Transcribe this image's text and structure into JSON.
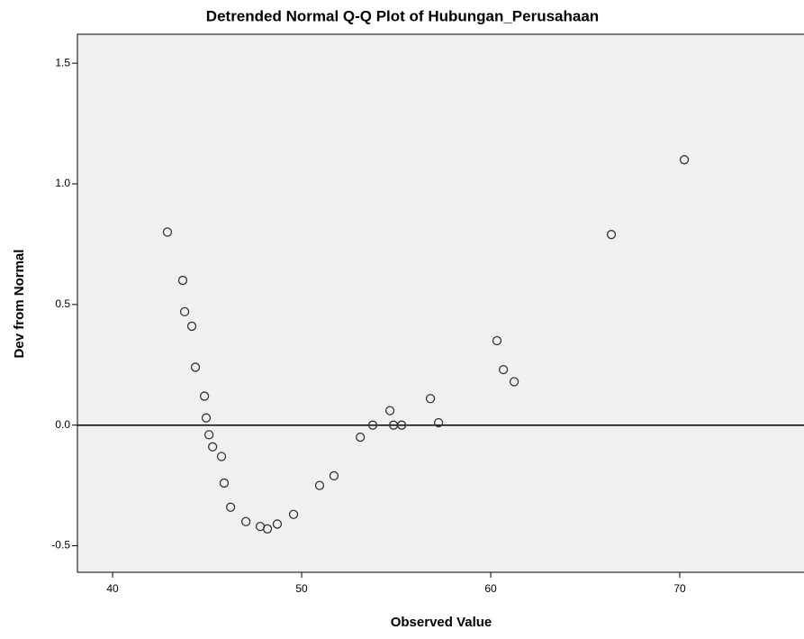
{
  "chart_data": {
    "type": "scatter",
    "title": "Detrended Normal Q-Q Plot of Hubungan_Perusahaan",
    "x_label": "Observed Value",
    "y_label": "Dev from Normal",
    "x": [
      42.9,
      43.71,
      43.81,
      44.19,
      44.38,
      44.86,
      44.95,
      45.1,
      45.29,
      45.76,
      45.9,
      46.24,
      47.05,
      47.81,
      48.19,
      48.71,
      49.57,
      50.95,
      51.71,
      53.1,
      53.76,
      54.67,
      54.86,
      55.29,
      56.81,
      57.24,
      60.33,
      60.67,
      61.24,
      66.38,
      70.24
    ],
    "values": [
      0.8,
      0.6,
      0.47,
      0.41,
      0.24,
      0.12,
      0.03,
      -0.04,
      -0.09,
      -0.13,
      -0.24,
      -0.34,
      -0.4,
      -0.42,
      -0.43,
      -0.41,
      -0.37,
      -0.25,
      -0.21,
      -0.05,
      0.0,
      0.06,
      0.0,
      0.0,
      0.11,
      0.01,
      0.35,
      0.23,
      0.18,
      0.79,
      1.1
    ],
    "color": "#333333",
    "xlim": [
      38.14,
      76.57
    ],
    "ylim": [
      -0.61,
      1.62
    ],
    "xticks": [
      40,
      50,
      60,
      70
    ],
    "yticks": [
      -0.5,
      {
        "value": 0,
        "label": "0.0"
      },
      0.5,
      {
        "value": 1,
        "label": "1.0"
      },
      1.5
    ],
    "hline": 0
  }
}
